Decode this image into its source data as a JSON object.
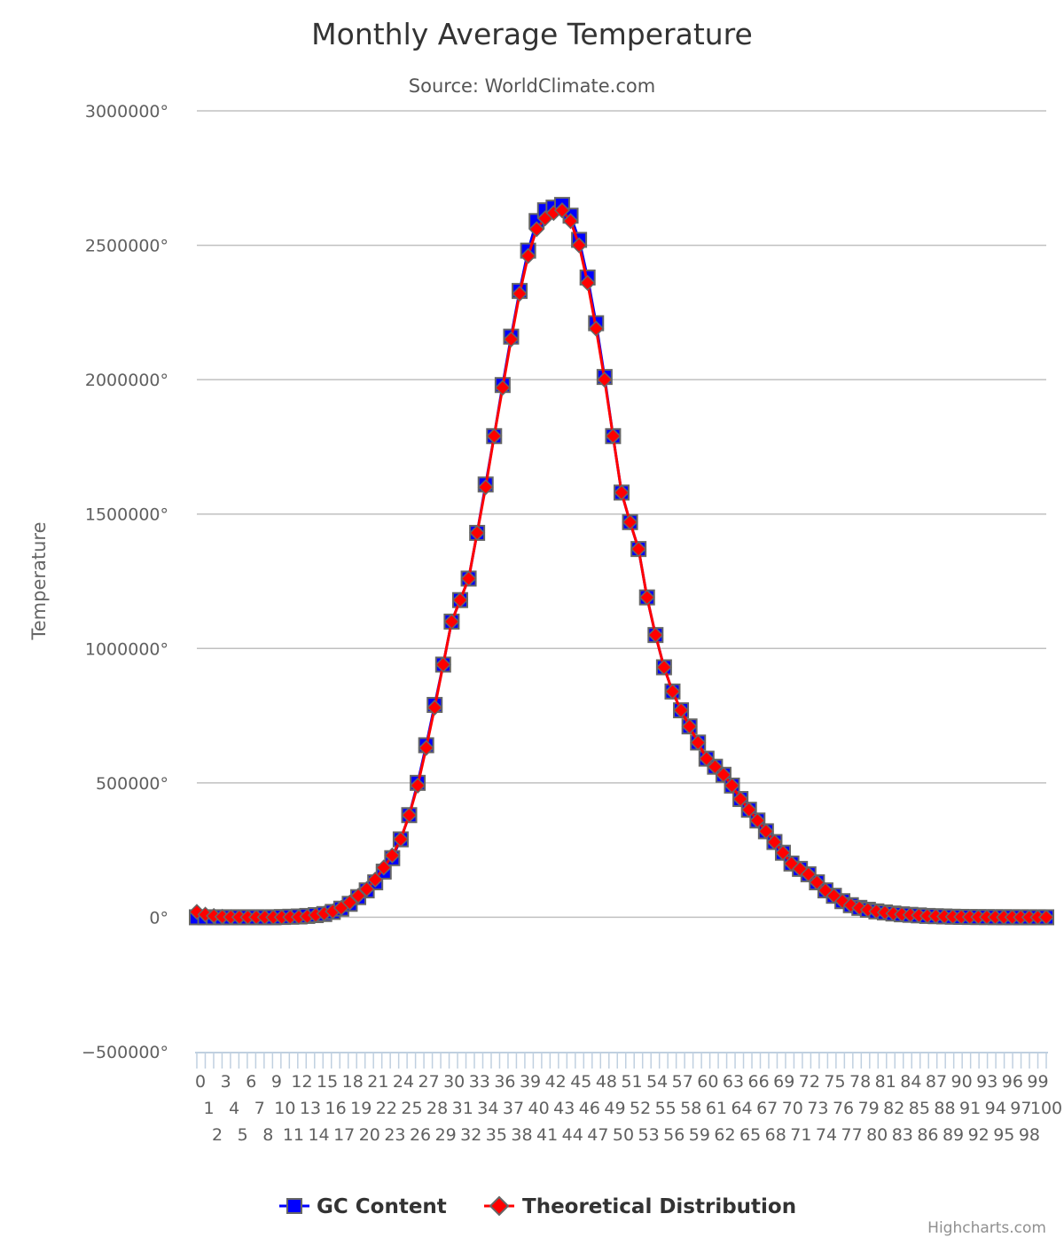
{
  "chart_data": {
    "type": "line",
    "title": "Monthly Average Temperature",
    "subtitle": "Source: WorldClimate.com",
    "ylabel": "Temperature",
    "xlabel": "",
    "y_tick_suffix": "°",
    "ylim": [
      -500000,
      3000000
    ],
    "y_ticks": [
      -500000,
      0,
      500000,
      1000000,
      1500000,
      2000000,
      2500000,
      3000000
    ],
    "y_tick_labels": [
      "−500000°",
      "0°",
      "500000°",
      "1000000°",
      "1500000°",
      "2000000°",
      "2500000°",
      "3000000°"
    ],
    "grid": true,
    "legend_position": "bottom-center",
    "categories": [
      "0",
      "1",
      "2",
      "3",
      "4",
      "5",
      "6",
      "7",
      "8",
      "9",
      "10",
      "11",
      "12",
      "13",
      "14",
      "15",
      "16",
      "17",
      "18",
      "19",
      "20",
      "21",
      "22",
      "23",
      "24",
      "25",
      "26",
      "27",
      "28",
      "29",
      "30",
      "31",
      "32",
      "33",
      "34",
      "35",
      "36",
      "37",
      "38",
      "39",
      "40",
      "41",
      "42",
      "43",
      "44",
      "45",
      "46",
      "47",
      "48",
      "49",
      "50",
      "51",
      "52",
      "53",
      "54",
      "55",
      "56",
      "57",
      "58",
      "59",
      "60",
      "61",
      "62",
      "63",
      "64",
      "65",
      "66",
      "67",
      "68",
      "69",
      "70",
      "71",
      "72",
      "73",
      "74",
      "75",
      "76",
      "77",
      "78",
      "79",
      "80",
      "81",
      "82",
      "83",
      "84",
      "85",
      "86",
      "87",
      "88",
      "89",
      "90",
      "91",
      "92",
      "93",
      "94",
      "95",
      "96",
      "97",
      "98",
      "99",
      "100"
    ],
    "series": [
      {
        "name": "GC Content",
        "color": "#0000FF",
        "marker": "square",
        "values": [
          0,
          0,
          0,
          0,
          0,
          0,
          0,
          0,
          0,
          0,
          1000,
          2000,
          3000,
          5000,
          8000,
          12000,
          20000,
          32000,
          50000,
          75000,
          100000,
          130000,
          170000,
          220000,
          290000,
          380000,
          500000,
          640000,
          790000,
          940000,
          1100000,
          1180000,
          1260000,
          1430000,
          1610000,
          1790000,
          1980000,
          2160000,
          2330000,
          2480000,
          2590000,
          2630000,
          2640000,
          2650000,
          2610000,
          2520000,
          2380000,
          2210000,
          2010000,
          1790000,
          1580000,
          1470000,
          1370000,
          1190000,
          1050000,
          930000,
          840000,
          770000,
          710000,
          650000,
          590000,
          560000,
          530000,
          490000,
          440000,
          400000,
          360000,
          320000,
          280000,
          240000,
          200000,
          180000,
          160000,
          130000,
          100000,
          80000,
          60000,
          45000,
          35000,
          28000,
          22000,
          18000,
          14000,
          11000,
          9000,
          7000,
          5000,
          4000,
          3000,
          2000,
          1500,
          1000,
          800,
          600,
          400,
          300,
          200,
          100,
          50,
          20,
          0
        ]
      },
      {
        "name": "Theoretical Distribution",
        "color": "#FF0000",
        "marker": "diamond",
        "values": [
          20000,
          10000,
          5000,
          2000,
          1000,
          500,
          300,
          200,
          150,
          150,
          200,
          500,
          1000,
          3000,
          8000,
          14000,
          22000,
          35000,
          55000,
          80000,
          105000,
          140000,
          185000,
          230000,
          290000,
          380000,
          490000,
          630000,
          780000,
          940000,
          1100000,
          1180000,
          1260000,
          1430000,
          1600000,
          1790000,
          1970000,
          2150000,
          2320000,
          2460000,
          2560000,
          2600000,
          2620000,
          2630000,
          2590000,
          2500000,
          2360000,
          2190000,
          2000000,
          1790000,
          1580000,
          1470000,
          1370000,
          1190000,
          1050000,
          930000,
          840000,
          770000,
          710000,
          650000,
          590000,
          560000,
          530000,
          490000,
          440000,
          400000,
          360000,
          320000,
          280000,
          240000,
          200000,
          180000,
          160000,
          130000,
          100000,
          80000,
          60000,
          45000,
          35000,
          28000,
          22000,
          18000,
          14000,
          11000,
          9000,
          7000,
          5000,
          4000,
          3000,
          2000,
          1500,
          1000,
          800,
          600,
          400,
          300,
          200,
          100,
          50,
          20,
          0
        ]
      }
    ]
  },
  "credits": "Highcharts.com"
}
